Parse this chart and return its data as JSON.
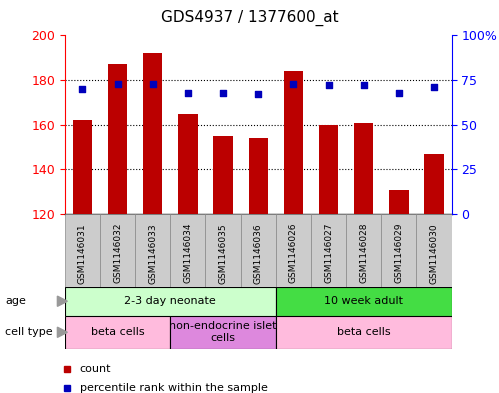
{
  "title": "GDS4937 / 1377600_at",
  "samples": [
    "GSM1146031",
    "GSM1146032",
    "GSM1146033",
    "GSM1146034",
    "GSM1146035",
    "GSM1146036",
    "GSM1146026",
    "GSM1146027",
    "GSM1146028",
    "GSM1146029",
    "GSM1146030"
  ],
  "counts": [
    162,
    187,
    192,
    165,
    155,
    154,
    184,
    160,
    161,
    131,
    147
  ],
  "percentile_ranks": [
    70,
    73,
    73,
    68,
    68,
    67,
    73,
    72,
    72,
    68,
    71
  ],
  "ylim_left": [
    120,
    200
  ],
  "ylim_right": [
    0,
    100
  ],
  "yticks_left": [
    120,
    140,
    160,
    180,
    200
  ],
  "yticks_right": [
    0,
    25,
    50,
    75,
    100
  ],
  "yticklabels_right": [
    "0",
    "25",
    "50",
    "75",
    "100%"
  ],
  "bar_color": "#BB0000",
  "dot_color": "#0000BB",
  "bar_width": 0.55,
  "age_groups": [
    {
      "label": "2-3 day neonate",
      "start": 0,
      "end": 6,
      "color": "#CCFFCC"
    },
    {
      "label": "10 week adult",
      "start": 6,
      "end": 11,
      "color": "#44DD44"
    }
  ],
  "cell_type_groups": [
    {
      "label": "beta cells",
      "start": 0,
      "end": 3,
      "color": "#FFBBDD"
    },
    {
      "label": "non-endocrine islet\ncells",
      "start": 3,
      "end": 6,
      "color": "#DD88DD"
    },
    {
      "label": "beta cells",
      "start": 6,
      "end": 11,
      "color": "#FFBBDD"
    }
  ],
  "legend_count_label": "count",
  "legend_pct_label": "percentile rank within the sample",
  "plot_bg": "#FFFFFF",
  "axis_bg": "#FFFFFF",
  "sample_bg": "#CCCCCC",
  "title_fontsize": 11,
  "tick_fontsize": 9,
  "label_fontsize": 8,
  "anno_fontsize": 8,
  "grid_lines": [
    140,
    160,
    180
  ]
}
